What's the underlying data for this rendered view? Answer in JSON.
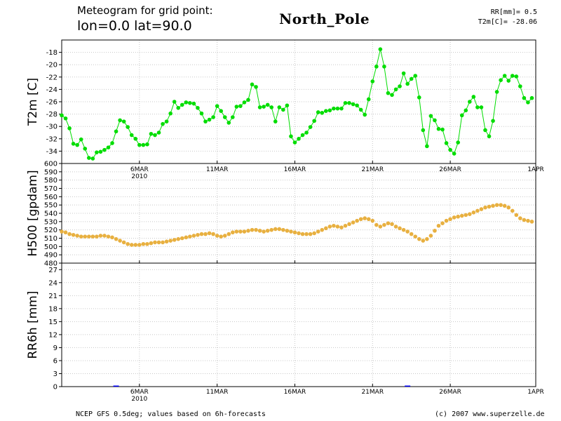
{
  "header": {
    "line1": "Meteogram for grid point:",
    "line2": "lon=0.0 lat=90.0",
    "place": "North_Pole",
    "rr_label": "RR[mm]= 0.5",
    "t2m_label": "T2m[C]= -28.06"
  },
  "footer": {
    "source": "NCEP GFS 0.5deg; values based on 6h-forecasts",
    "credit": "(c) 2007 www.superzelle.de"
  },
  "colors": {
    "t2m": "#00dd00",
    "h500": "#e8b040",
    "rr": "#0000ff",
    "grid": "#c8c8c8",
    "axis": "#000000"
  },
  "chart_data": [
    {
      "type": "line",
      "ylabel": "T2m [C]",
      "ylim": [
        -36,
        -16
      ],
      "yticks": [
        "-18",
        "-20",
        "-22",
        "-24",
        "-26",
        "-28",
        "-30",
        "-32",
        "-34"
      ],
      "x_axis": {
        "tick_labels": [
          "6MAR",
          "11MAR",
          "16MAR",
          "21MAR",
          "26MAR",
          "1APR"
        ],
        "year_label": "2010",
        "range_days": [
          0,
          30.5
        ]
      },
      "series": [
        {
          "x": [
            0,
            0.25,
            0.5,
            0.75,
            1,
            1.25,
            1.5,
            1.75,
            2,
            2.25,
            2.5,
            2.75,
            3,
            3.25,
            3.5,
            3.75,
            4,
            4.25,
            4.5,
            4.75,
            5,
            5.25,
            5.5,
            5.75,
            6,
            6.25,
            6.5,
            6.75,
            7,
            7.25,
            7.5,
            7.75,
            8,
            8.25,
            8.5,
            8.75,
            9,
            9.25,
            9.5,
            9.75,
            10,
            10.25,
            10.5,
            10.75,
            11,
            11.25,
            11.5,
            11.75,
            12,
            12.25,
            12.5,
            12.75,
            13,
            13.25,
            13.5,
            13.75,
            14,
            14.25,
            14.5,
            14.75,
            15,
            15.25,
            15.5,
            15.75,
            16,
            16.25,
            16.5,
            16.75,
            17,
            17.25,
            17.5,
            17.75,
            18,
            18.25,
            18.5,
            18.75,
            19,
            19.25,
            19.5,
            19.75,
            20,
            20.25,
            20.5,
            20.75,
            21,
            21.25,
            21.5,
            21.75,
            22,
            22.25,
            22.5,
            22.75,
            23,
            23.25,
            23.5,
            23.75,
            24,
            24.25,
            24.5,
            24.75,
            25,
            25.25,
            25.5,
            25.75,
            26,
            26.25,
            26.5,
            26.75,
            27,
            27.25,
            27.5,
            27.75,
            28,
            28.25,
            28.5,
            28.75,
            29,
            29.25,
            29.5,
            29.75,
            30,
            30.25
          ],
          "values": [
            -28.2,
            -28.7,
            -30.3,
            -32.8,
            -33,
            -32.1,
            -33.6,
            -35.1,
            -35.2,
            -34.2,
            -34.1,
            -33.8,
            -33.4,
            -32.7,
            -30.8,
            -29,
            -29.2,
            -30.1,
            -31.4,
            -32,
            -33,
            -33,
            -32.9,
            -31.2,
            -31.4,
            -31,
            -29.6,
            -29.2,
            -27.9,
            -26,
            -27,
            -26.5,
            -26.1,
            -26.2,
            -26.3,
            -27,
            -27.9,
            -29.2,
            -28.9,
            -28.5,
            -26.7,
            -27.5,
            -28.5,
            -29.4,
            -28.5,
            -26.8,
            -26.7,
            -26.1,
            -25.7,
            -23.2,
            -23.6,
            -26.9,
            -26.8,
            -26.5,
            -26.9,
            -29.2,
            -26.9,
            -27.3,
            -26.6,
            -31.6,
            -32.6,
            -32,
            -31.4,
            -31,
            -30.1,
            -29.1,
            -27.7,
            -27.8,
            -27.5,
            -27.4,
            -27.1,
            -27.1,
            -27.1,
            -26.2,
            -26.2,
            -26.4,
            -26.6,
            -27.3,
            -28.1,
            -25.6,
            -22.7,
            -20.3,
            -17.5,
            -20.3,
            -24.6,
            -24.9,
            -24,
            -23.5,
            -21.4,
            -23.1,
            -22.3,
            -21.8,
            -25.3,
            -30.6,
            -33.2,
            -28.3,
            -29,
            -30.4,
            -30.5,
            -32.7,
            -33.8,
            -34.4,
            -32.6,
            -28.2,
            -27.4,
            -26,
            -25.2,
            -26.9,
            -26.9,
            -30.6,
            -31.6,
            -29.1,
            -24.4,
            -22.5,
            -21.8,
            -22.6,
            -21.8,
            -21.9,
            -23.5,
            -25.4,
            -26.1,
            -25.4
          ]
        }
      ]
    },
    {
      "type": "line",
      "ylabel": "H500 [gpdam]",
      "ylim": [
        480,
        600
      ],
      "yticks": [
        "600",
        "590",
        "580",
        "570",
        "560",
        "550",
        "540",
        "530",
        "520",
        "510",
        "500",
        "490",
        "480"
      ],
      "series": [
        {
          "x": [
            0,
            0.25,
            0.5,
            0.75,
            1,
            1.25,
            1.5,
            1.75,
            2,
            2.25,
            2.5,
            2.75,
            3,
            3.25,
            3.5,
            3.75,
            4,
            4.25,
            4.5,
            4.75,
            5,
            5.25,
            5.5,
            5.75,
            6,
            6.25,
            6.5,
            6.75,
            7,
            7.25,
            7.5,
            7.75,
            8,
            8.25,
            8.5,
            8.75,
            9,
            9.25,
            9.5,
            9.75,
            10,
            10.25,
            10.5,
            10.75,
            11,
            11.25,
            11.5,
            11.75,
            12,
            12.25,
            12.5,
            12.75,
            13,
            13.25,
            13.5,
            13.75,
            14,
            14.25,
            14.5,
            14.75,
            15,
            15.25,
            15.5,
            15.75,
            16,
            16.25,
            16.5,
            16.75,
            17,
            17.25,
            17.5,
            17.75,
            18,
            18.25,
            18.5,
            18.75,
            19,
            19.25,
            19.5,
            19.75,
            20,
            20.25,
            20.5,
            20.75,
            21,
            21.25,
            21.5,
            21.75,
            22,
            22.25,
            22.5,
            22.75,
            23,
            23.25,
            23.5,
            23.75,
            24,
            24.25,
            24.5,
            24.75,
            25,
            25.25,
            25.5,
            25.75,
            26,
            26.25,
            26.5,
            26.75,
            27,
            27.25,
            27.5,
            27.75,
            28,
            28.25,
            28.5,
            28.75,
            29,
            29.25,
            29.5,
            29.75,
            30,
            30.25
          ],
          "values": [
            518,
            517,
            515,
            514,
            513,
            512,
            512,
            512,
            512,
            512,
            513,
            513,
            512,
            511,
            509,
            507,
            505,
            503,
            502,
            502,
            502,
            503,
            503,
            504,
            505,
            505,
            505,
            506,
            507,
            508,
            509,
            510,
            511,
            512,
            513,
            514,
            515,
            515,
            516,
            515,
            513,
            512,
            513,
            515,
            517,
            518,
            518,
            518,
            519,
            520,
            520,
            519,
            518,
            519,
            520,
            521,
            521,
            520,
            519,
            518,
            517,
            516,
            515,
            515,
            515,
            516,
            518,
            520,
            522,
            524,
            525,
            524,
            523,
            525,
            527,
            529,
            531,
            533,
            534,
            533,
            531,
            526,
            524,
            526,
            528,
            527,
            524,
            522,
            520,
            518,
            515,
            512,
            509,
            507,
            509,
            513,
            519,
            525,
            528,
            531,
            533,
            535,
            536,
            537,
            538,
            539,
            541,
            543,
            545,
            547,
            548,
            549,
            550,
            550,
            549,
            547,
            543,
            538,
            534,
            532,
            531,
            530
          ]
        }
      ]
    },
    {
      "type": "bar",
      "ylabel": "RR6h [mm]",
      "ylim": [
        0,
        28.5
      ],
      "yticks": [
        "27",
        "24",
        "21",
        "18",
        "15",
        "12",
        "9",
        "6",
        "3",
        "0"
      ],
      "series": [
        {
          "x": [
            3.5,
            22.25
          ],
          "values": [
            0.1,
            0.1
          ]
        }
      ]
    }
  ]
}
